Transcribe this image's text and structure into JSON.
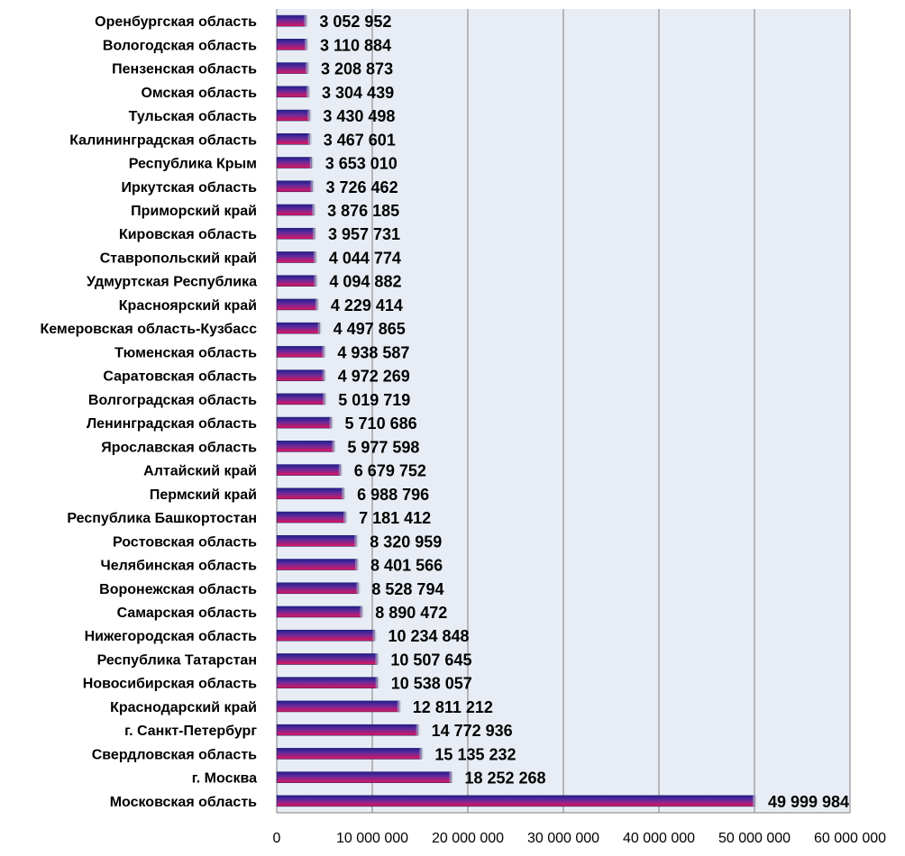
{
  "chart_data": {
    "type": "bar",
    "orientation": "horizontal",
    "title": "",
    "xlabel": "",
    "ylabel": "",
    "xlim": [
      0,
      60000000
    ],
    "grid": true,
    "legend": "none",
    "colors": {
      "plot_background": "#e8edf5",
      "gridline": "#7f7f7f",
      "bar_top": "#1f1f8f",
      "bar_bottom": "#e0155c"
    },
    "ticks": [
      "0",
      "10 000 000",
      "20 000 000",
      "30 000 000",
      "40 000 000",
      "50 000 000",
      "60 000 000"
    ],
    "categories": [
      "Оренбургская область",
      "Вологодская область",
      "Пензенская область",
      "Омская область",
      "Тульская область",
      "Калининградская область",
      "Республика Крым",
      "Иркутская область",
      "Приморский край",
      "Кировская область",
      "Ставропольский край",
      "Удмуртская Республика",
      "Красноярский край",
      "Кемеровская область-Кузбасс",
      "Тюменская область",
      "Саратовская область",
      "Волгоградская область",
      "Ленинградская область",
      "Ярославская область",
      "Алтайский край",
      "Пермский край",
      "Республика Башкортостан",
      "Ростовская область",
      "Челябинская область",
      "Воронежская область",
      "Самарская область",
      "Нижегородская область",
      "Республика Татарстан",
      "Новосибирская область",
      "Краснодарский край",
      "г. Санкт-Петербург",
      "Свердловская область",
      "г. Москва",
      "Московская область"
    ],
    "values": [
      3052952,
      3110884,
      3208873,
      3304439,
      3430498,
      3467601,
      3653010,
      3726462,
      3876185,
      3957731,
      4044774,
      4094882,
      4229414,
      4497865,
      4938587,
      4972269,
      5019719,
      5710686,
      5977598,
      6679752,
      6988796,
      7181412,
      8320959,
      8401566,
      8528794,
      8890472,
      10234848,
      10507645,
      10538057,
      12811212,
      14772936,
      15135232,
      18252268,
      49999984
    ],
    "value_labels": [
      "3 052 952",
      "3 110 884",
      "3 208 873",
      "3 304 439",
      "3 430 498",
      "3 467 601",
      "3 653 010",
      "3 726 462",
      "3 876 185",
      "3 957 731",
      "4 044 774",
      "4 094 882",
      "4 229 414",
      "4 497 865",
      "4 938 587",
      "4 972 269",
      "5 019 719",
      "5 710 686",
      "5 977 598",
      "6 679 752",
      "6 988 796",
      "7 181 412",
      "8 320 959",
      "8 401 566",
      "8 528 794",
      "8 890 472",
      "10 234 848",
      "10 507 645",
      "10 538 057",
      "12 811 212",
      "14 772 936",
      "15 135 232",
      "18 252 268",
      "49 999 984"
    ]
  }
}
